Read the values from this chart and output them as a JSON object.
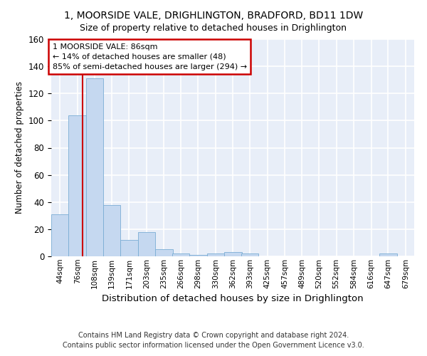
{
  "title_line1": "1, MOORSIDE VALE, DRIGHLINGTON, BRADFORD, BD11 1DW",
  "title_line2": "Size of property relative to detached houses in Drighlington",
  "xlabel": "Distribution of detached houses by size in Drighlington",
  "ylabel": "Number of detached properties",
  "bar_color": "#c5d8f0",
  "bar_edge_color": "#7aadd4",
  "background_color": "#e8eef8",
  "grid_color": "#ffffff",
  "red_line_x": 86,
  "annotation_text": "1 MOORSIDE VALE: 86sqm\n← 14% of detached houses are smaller (48)\n85% of semi-detached houses are larger (294) →",
  "annotation_box_color": "#cc0000",
  "footnote": "Contains HM Land Registry data © Crown copyright and database right 2024.\nContains public sector information licensed under the Open Government Licence v3.0.",
  "bins": [
    44,
    76,
    108,
    139,
    171,
    203,
    235,
    266,
    298,
    330,
    362,
    393,
    425,
    457,
    489,
    520,
    552,
    584,
    616,
    647,
    679
  ],
  "counts": [
    31,
    104,
    131,
    38,
    12,
    18,
    5,
    2,
    1,
    2,
    3,
    2,
    0,
    0,
    0,
    0,
    0,
    0,
    0,
    2,
    0
  ],
  "ylim": [
    0,
    160
  ],
  "yticks": [
    0,
    20,
    40,
    60,
    80,
    100,
    120,
    140,
    160
  ]
}
